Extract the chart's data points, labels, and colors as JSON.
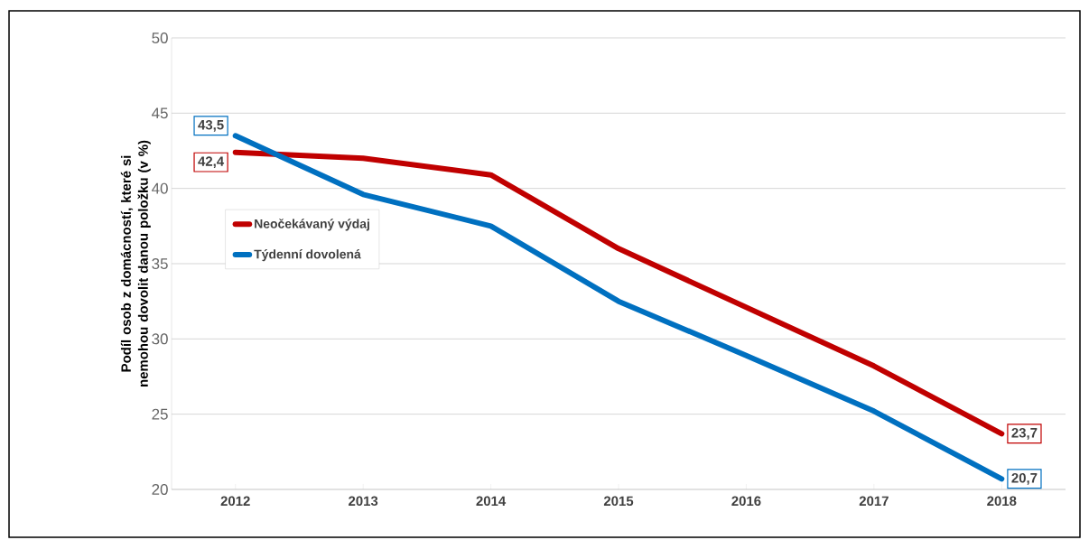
{
  "chart_data": {
    "type": "line",
    "ylabel": "Podíl osob z domácností, které si nemohou dovolit danou položku (v %)",
    "categories": [
      "2012",
      "2013",
      "2014",
      "2015",
      "2016",
      "2017",
      "2018"
    ],
    "series": [
      {
        "name": "Neočekávaný výdaj",
        "color": "#c00000",
        "values": [
          42.4,
          42.0,
          40.9,
          36.0,
          32.1,
          28.2,
          23.7
        ],
        "value_labels": [
          "42,4",
          null,
          null,
          null,
          null,
          null,
          "23,7"
        ]
      },
      {
        "name": "Týdenní dovolená",
        "color": "#0070c0",
        "values": [
          43.5,
          39.6,
          37.5,
          32.5,
          28.9,
          25.2,
          20.7
        ],
        "value_labels": [
          "43,5",
          null,
          null,
          null,
          null,
          null,
          "20,7"
        ]
      }
    ],
    "ylim": [
      20,
      50
    ],
    "yticks": [
      20,
      25,
      30,
      35,
      40,
      45,
      50
    ],
    "grid": "y",
    "legend": "left",
    "marker": "none",
    "line_style": "solid"
  }
}
